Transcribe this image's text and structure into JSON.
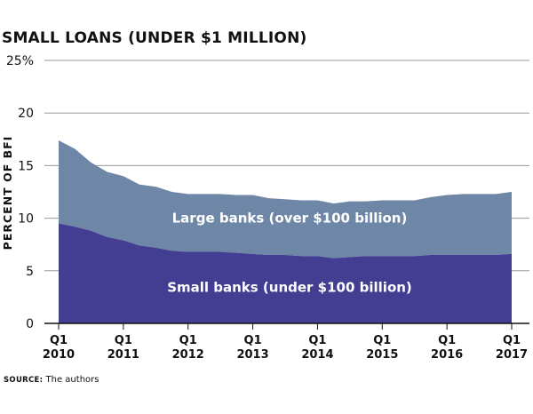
{
  "chart_data": {
    "type": "area",
    "stacked": true,
    "title": "SMALL LOANS (UNDER $1 MILLION)",
    "ylabel": "PERCENT OF BFI",
    "xlabel": "",
    "ylim": [
      0,
      25
    ],
    "yticks": [
      "0",
      "5",
      "10",
      "15",
      "20",
      "25%"
    ],
    "xticks": [
      {
        "q": "Q1",
        "year": "2010"
      },
      {
        "q": "Q1",
        "year": "2011"
      },
      {
        "q": "Q1",
        "year": "2012"
      },
      {
        "q": "Q1",
        "year": "2013"
      },
      {
        "q": "Q1",
        "year": "2014"
      },
      {
        "q": "Q1",
        "year": "2015"
      },
      {
        "q": "Q1",
        "year": "2016"
      },
      {
        "q": "Q1",
        "year": "2017"
      }
    ],
    "grid": true,
    "x": [
      "2010Q1",
      "2010Q2",
      "2010Q3",
      "2010Q4",
      "2011Q1",
      "2011Q2",
      "2011Q3",
      "2011Q4",
      "2012Q1",
      "2012Q2",
      "2012Q3",
      "2012Q4",
      "2013Q1",
      "2013Q2",
      "2013Q3",
      "2013Q4",
      "2014Q1",
      "2014Q2",
      "2014Q3",
      "2014Q4",
      "2015Q1",
      "2015Q2",
      "2015Q3",
      "2015Q4",
      "2016Q1",
      "2016Q2",
      "2016Q3",
      "2016Q4",
      "2017Q1"
    ],
    "series": [
      {
        "name": "Small banks (under $100 billion)",
        "color": "#433e92",
        "values": [
          9.5,
          9.2,
          8.8,
          8.2,
          7.9,
          7.4,
          7.2,
          6.9,
          6.8,
          6.8,
          6.8,
          6.7,
          6.6,
          6.5,
          6.5,
          6.4,
          6.4,
          6.2,
          6.3,
          6.4,
          6.4,
          6.4,
          6.4,
          6.5,
          6.5,
          6.5,
          6.5,
          6.5,
          6.6
        ]
      },
      {
        "name": "Large banks (over $100 billion)",
        "color": "#6e87a6",
        "values": [
          7.9,
          7.4,
          6.5,
          6.2,
          6.1,
          5.8,
          5.8,
          5.6,
          5.5,
          5.5,
          5.5,
          5.5,
          5.6,
          5.4,
          5.3,
          5.3,
          5.3,
          5.2,
          5.3,
          5.2,
          5.3,
          5.3,
          5.3,
          5.5,
          5.7,
          5.8,
          5.8,
          5.8,
          5.9
        ]
      }
    ]
  },
  "source": {
    "label": "SOURCE:",
    "text": "The authors"
  }
}
